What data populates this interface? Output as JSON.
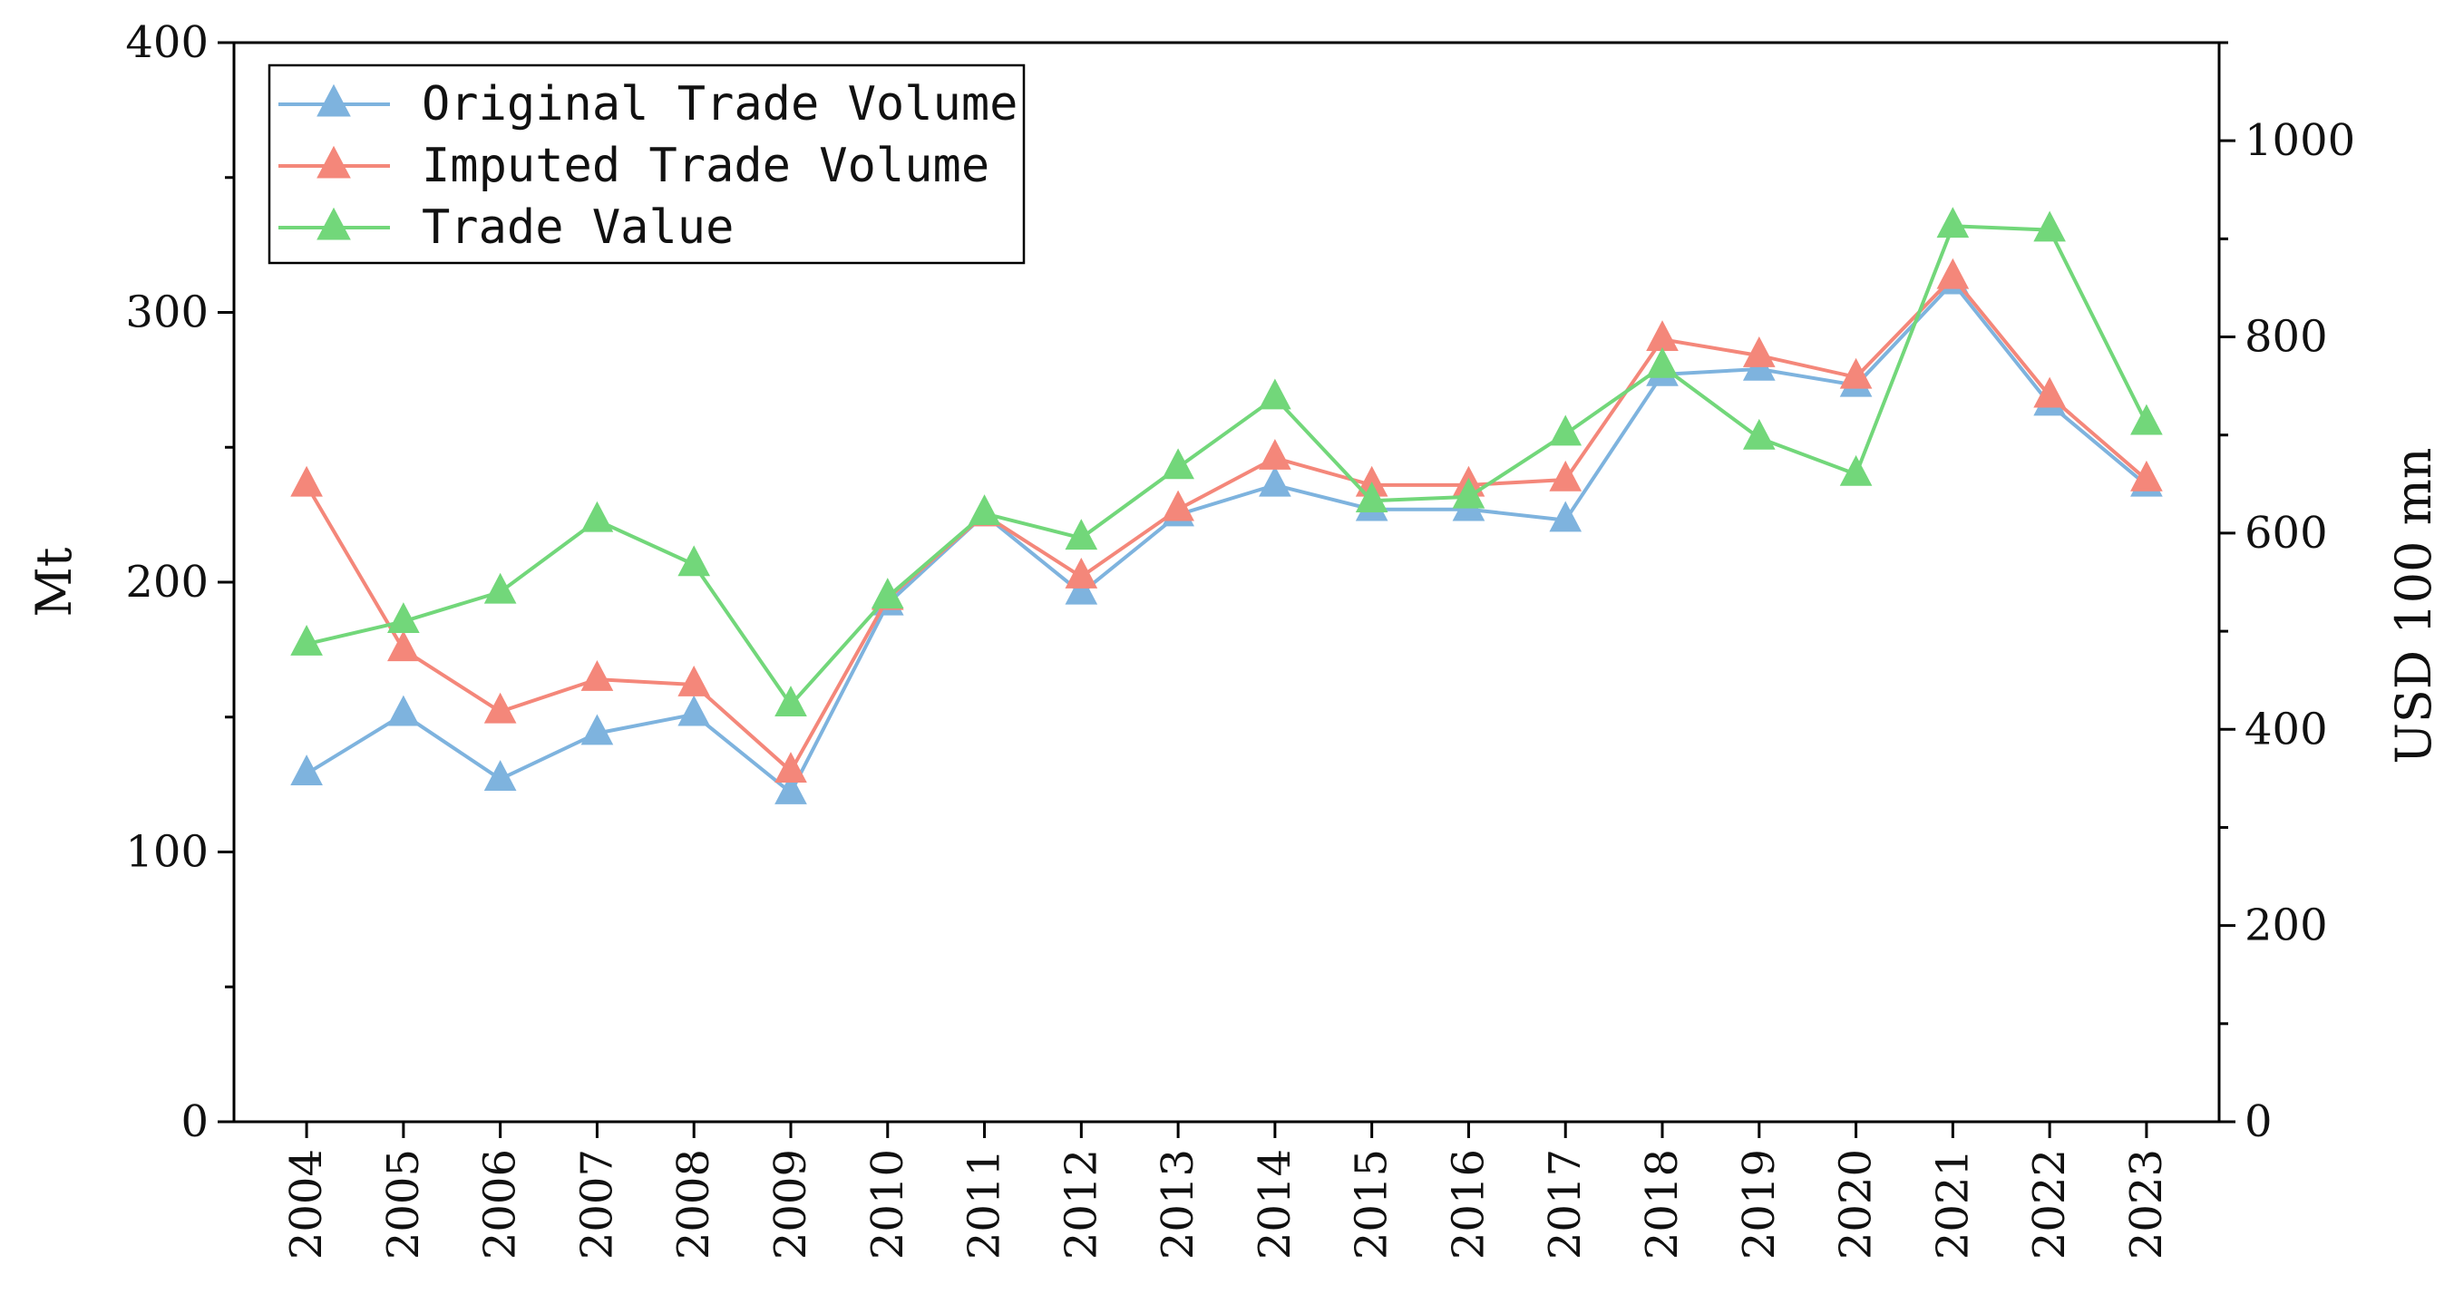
{
  "chart_data": {
    "type": "line",
    "title": "",
    "xlabel": "",
    "ylabel": "Mt",
    "y2label": "USD 100 mn",
    "categories": [
      "2004",
      "2005",
      "2006",
      "2007",
      "2008",
      "2009",
      "2010",
      "2011",
      "2012",
      "2013",
      "2014",
      "2015",
      "2016",
      "2017",
      "2018",
      "2019",
      "2020",
      "2021",
      "2022",
      "2023"
    ],
    "ylim": [
      0,
      400
    ],
    "y_ticks": [
      0,
      100,
      200,
      300,
      400
    ],
    "y_tick_labels": [
      "0",
      "100",
      "200",
      "300",
      "400"
    ],
    "y2lim": [
      0,
      1100
    ],
    "y2_ticks": [
      0,
      200,
      400,
      600,
      800,
      1000
    ],
    "y2_tick_labels": [
      "0",
      "200",
      "400",
      "600",
      "800",
      "1000"
    ],
    "legend_position": "top-left",
    "grid": false,
    "series": [
      {
        "name": "Original Trade Volume",
        "axis": "left",
        "color": "#7eb3de",
        "values": [
          129,
          151,
          127,
          144,
          151,
          122,
          192,
          225,
          196,
          225,
          236,
          227,
          227,
          223,
          277,
          279,
          273,
          311,
          266,
          236
        ]
      },
      {
        "name": "Imputed Trade Volume",
        "axis": "left",
        "color": "#f4877a",
        "values": [
          236,
          175,
          152,
          164,
          162,
          130,
          194,
          225,
          202,
          227,
          246,
          236,
          236,
          238,
          290,
          284,
          276,
          313,
          269,
          238
        ]
      },
      {
        "name": "Trade Value",
        "axis": "right",
        "color": "#72d77a",
        "values": [
          487,
          510,
          540,
          613,
          568,
          425,
          535,
          620,
          595,
          667,
          738,
          633,
          637,
          701,
          770,
          697,
          660,
          913,
          909,
          712
        ]
      }
    ]
  }
}
